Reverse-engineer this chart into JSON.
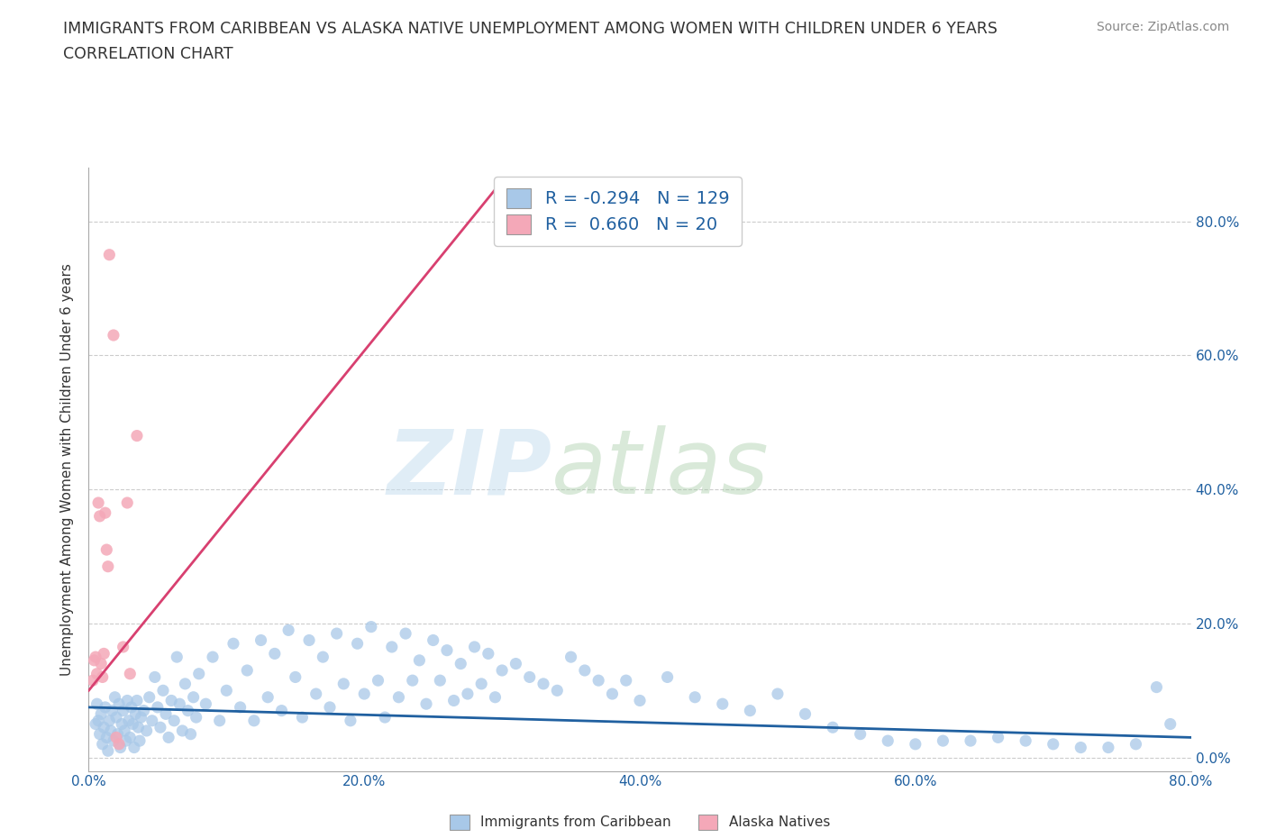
{
  "title": "IMMIGRANTS FROM CARIBBEAN VS ALASKA NATIVE UNEMPLOYMENT AMONG WOMEN WITH CHILDREN UNDER 6 YEARS",
  "subtitle": "CORRELATION CHART",
  "source": "Source: ZipAtlas.com",
  "ylabel": "Unemployment Among Women with Children Under 6 years",
  "xlim": [
    0.0,
    0.8
  ],
  "ylim": [
    -0.02,
    0.88
  ],
  "xticks": [
    0.0,
    0.2,
    0.4,
    0.6,
    0.8
  ],
  "yticks": [
    0.0,
    0.2,
    0.4,
    0.6,
    0.8
  ],
  "xticklabels": [
    "0.0%",
    "20.0%",
    "40.0%",
    "60.0%",
    "80.0%"
  ],
  "yticklabels": [
    "0.0%",
    "20.0%",
    "40.0%",
    "60.0%",
    "80.0%"
  ],
  "blue_R": -0.294,
  "blue_N": 129,
  "pink_R": 0.66,
  "pink_N": 20,
  "blue_color": "#a8c8e8",
  "pink_color": "#f4a8b8",
  "blue_line_color": "#2060a0",
  "pink_line_color": "#d84070",
  "watermark_zip": "ZIP",
  "watermark_atlas": "atlas",
  "legend_label_blue": "Immigrants from Caribbean",
  "legend_label_pink": "Alaska Natives",
  "blue_scatter_x": [
    0.005,
    0.006,
    0.007,
    0.008,
    0.009,
    0.01,
    0.011,
    0.012,
    0.013,
    0.014,
    0.015,
    0.016,
    0.017,
    0.018,
    0.019,
    0.02,
    0.021,
    0.022,
    0.023,
    0.024,
    0.025,
    0.026,
    0.027,
    0.028,
    0.029,
    0.03,
    0.031,
    0.032,
    0.033,
    0.034,
    0.035,
    0.036,
    0.037,
    0.038,
    0.04,
    0.042,
    0.044,
    0.046,
    0.048,
    0.05,
    0.052,
    0.054,
    0.056,
    0.058,
    0.06,
    0.062,
    0.064,
    0.066,
    0.068,
    0.07,
    0.072,
    0.074,
    0.076,
    0.078,
    0.08,
    0.085,
    0.09,
    0.095,
    0.1,
    0.105,
    0.11,
    0.115,
    0.12,
    0.125,
    0.13,
    0.135,
    0.14,
    0.145,
    0.15,
    0.155,
    0.16,
    0.165,
    0.17,
    0.175,
    0.18,
    0.185,
    0.19,
    0.195,
    0.2,
    0.205,
    0.21,
    0.215,
    0.22,
    0.225,
    0.23,
    0.235,
    0.24,
    0.245,
    0.25,
    0.255,
    0.26,
    0.265,
    0.27,
    0.275,
    0.28,
    0.285,
    0.29,
    0.295,
    0.3,
    0.31,
    0.32,
    0.33,
    0.34,
    0.35,
    0.36,
    0.37,
    0.38,
    0.39,
    0.4,
    0.42,
    0.44,
    0.46,
    0.48,
    0.5,
    0.52,
    0.54,
    0.56,
    0.58,
    0.6,
    0.62,
    0.64,
    0.66,
    0.68,
    0.7,
    0.72,
    0.74,
    0.76,
    0.775,
    0.785
  ],
  "blue_scatter_y": [
    0.05,
    0.08,
    0.055,
    0.035,
    0.065,
    0.02,
    0.045,
    0.075,
    0.03,
    0.01,
    0.055,
    0.04,
    0.07,
    0.025,
    0.09,
    0.06,
    0.035,
    0.08,
    0.015,
    0.05,
    0.07,
    0.04,
    0.025,
    0.085,
    0.055,
    0.03,
    0.075,
    0.05,
    0.015,
    0.065,
    0.085,
    0.045,
    0.025,
    0.06,
    0.07,
    0.04,
    0.09,
    0.055,
    0.12,
    0.075,
    0.045,
    0.1,
    0.065,
    0.03,
    0.085,
    0.055,
    0.15,
    0.08,
    0.04,
    0.11,
    0.07,
    0.035,
    0.09,
    0.06,
    0.125,
    0.08,
    0.15,
    0.055,
    0.1,
    0.17,
    0.075,
    0.13,
    0.055,
    0.175,
    0.09,
    0.155,
    0.07,
    0.19,
    0.12,
    0.06,
    0.175,
    0.095,
    0.15,
    0.075,
    0.185,
    0.11,
    0.055,
    0.17,
    0.095,
    0.195,
    0.115,
    0.06,
    0.165,
    0.09,
    0.185,
    0.115,
    0.145,
    0.08,
    0.175,
    0.115,
    0.16,
    0.085,
    0.14,
    0.095,
    0.165,
    0.11,
    0.155,
    0.09,
    0.13,
    0.14,
    0.12,
    0.11,
    0.1,
    0.15,
    0.13,
    0.115,
    0.095,
    0.115,
    0.085,
    0.12,
    0.09,
    0.08,
    0.07,
    0.095,
    0.065,
    0.045,
    0.035,
    0.025,
    0.02,
    0.025,
    0.025,
    0.03,
    0.025,
    0.02,
    0.015,
    0.015,
    0.02,
    0.105,
    0.05
  ],
  "pink_scatter_x": [
    0.003,
    0.004,
    0.005,
    0.006,
    0.007,
    0.008,
    0.009,
    0.01,
    0.011,
    0.012,
    0.013,
    0.014,
    0.015,
    0.018,
    0.02,
    0.022,
    0.025,
    0.028,
    0.03,
    0.035
  ],
  "pink_scatter_y": [
    0.115,
    0.145,
    0.15,
    0.125,
    0.38,
    0.36,
    0.14,
    0.12,
    0.155,
    0.365,
    0.31,
    0.285,
    0.75,
    0.63,
    0.03,
    0.02,
    0.165,
    0.38,
    0.125,
    0.48
  ],
  "blue_trend_x": [
    0.0,
    0.8
  ],
  "blue_trend_y": [
    0.075,
    0.03
  ],
  "pink_trend_x": [
    0.0,
    0.3
  ],
  "pink_trend_y": [
    0.1,
    0.86
  ]
}
